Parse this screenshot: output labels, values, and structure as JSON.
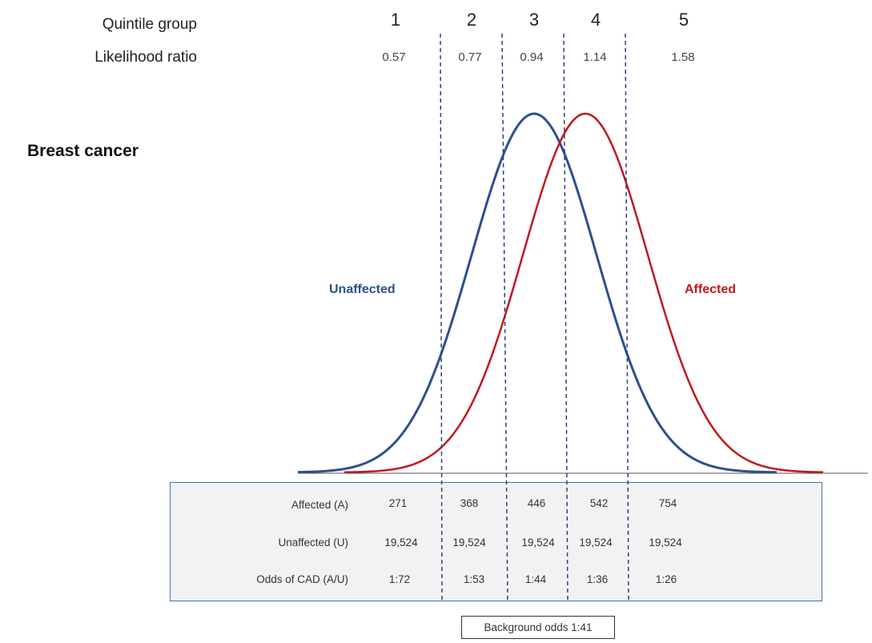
{
  "header": {
    "quintile_label": "Quintile group",
    "likelihood_label": "Likelihood ratio",
    "quintiles": [
      "1",
      "2",
      "3",
      "4",
      "5"
    ],
    "likelihood_ratios": [
      "0.57",
      "0.77",
      "0.94",
      "1.14",
      "1.58"
    ]
  },
  "title": "Breast cancer",
  "series": {
    "unaffected": {
      "label": "Unaffected",
      "color": "#2e4f8f"
    },
    "affected": {
      "label": "Affected",
      "color": "#c0181e"
    }
  },
  "divider_color": "#2e3f7a",
  "table": {
    "rows": [
      {
        "label": "Affected (A)",
        "values": [
          "271",
          "368",
          "446",
          "542",
          "754"
        ]
      },
      {
        "label": "Unaffected (U)",
        "values": [
          "19,524",
          "19,524",
          "19,524",
          "19,524",
          "19,524"
        ]
      },
      {
        "label": "Odds of CAD (A/U)",
        "values": [
          "1:72",
          "1:53",
          "1:44",
          "1:36",
          "1:26"
        ]
      }
    ]
  },
  "background_odds": "Background odds 1:41"
}
